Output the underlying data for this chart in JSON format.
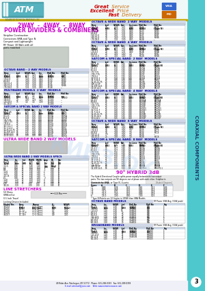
{
  "page_bg": "#ffffff",
  "sidebar_color": "#4ec8cc",
  "sidebar_text": "COAXIAL COMPONENTS",
  "sidebar_text_color": "#003366",
  "page_number": "3",
  "logo_bg_top": "#5aacb0",
  "logo_bg_bot": "#2e6e7a",
  "gold_bar_color": "#c8a800",
  "title_color": "#cc00cc",
  "section_color": "#000099",
  "highlight_color": "#ff0000",
  "footer_text": "49 Rider Ave, Patchogue, NY 11772   Phone: 631-289-0363   Fax: 631-289-0358",
  "footer_email": "E-mail: atmmeil@juno.com",
  "footer_web": "Web: www.atmmicrowave.com"
}
